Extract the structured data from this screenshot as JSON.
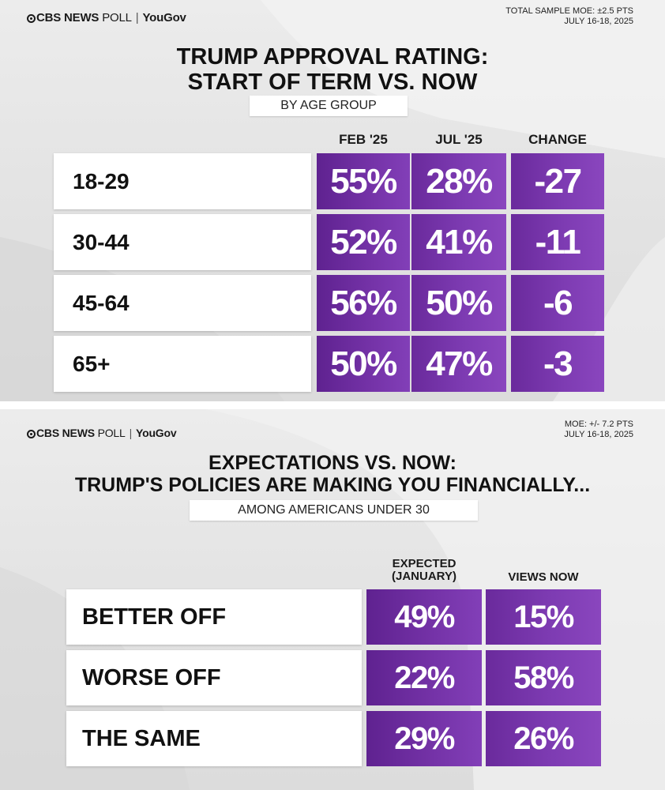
{
  "colors": {
    "accent_purple": "#7a36ae",
    "cell_text": "#ffffff",
    "background": "#e6e6e6"
  },
  "panel1": {
    "brand": {
      "network": "CBS NEWS",
      "poll": "POLL",
      "partner": "YouGov"
    },
    "moe": {
      "line1": "TOTAL SAMPLE MOE: ±2.5 PTS",
      "line2": "JULY 16-18, 2025"
    },
    "title": {
      "line1": "TRUMP APPROVAL RATING:",
      "line2": "START OF TERM VS. NOW"
    },
    "subtitle": "BY AGE GROUP"
  },
  "panel2": {
    "brand": {
      "network": "CBS NEWS",
      "poll": "POLL",
      "partner": "YouGov"
    },
    "moe": {
      "line1": "MOE: +/- 7.2 PTS",
      "line2": "JULY 16-18, 2025"
    },
    "title": {
      "line1": "EXPECTATIONS VS. NOW:",
      "line2": "TRUMP'S POLICIES ARE MAKING YOU FINANCIALLY..."
    },
    "subtitle": "AMONG AMERICANS UNDER 30"
  },
  "chart_data": [
    {
      "type": "table",
      "title": "TRUMP APPROVAL RATING: START OF TERM VS. NOW",
      "subtitle": "BY AGE GROUP",
      "columns": [
        "FEB '25",
        "JUL '25",
        "CHANGE"
      ],
      "rows": [
        {
          "label": "18-29",
          "cells": [
            "55%",
            "28%",
            "-27"
          ]
        },
        {
          "label": "30-44",
          "cells": [
            "52%",
            "41%",
            "-11"
          ]
        },
        {
          "label": "45-64",
          "cells": [
            "56%",
            "50%",
            "-6"
          ]
        },
        {
          "label": "65+",
          "cells": [
            "50%",
            "47%",
            "-3"
          ]
        }
      ]
    },
    {
      "type": "table",
      "title": "EXPECTATIONS VS. NOW: TRUMP'S POLICIES ARE MAKING YOU FINANCIALLY...",
      "subtitle": "AMONG AMERICANS UNDER 30",
      "columns": [
        "EXPECTED (JANUARY)",
        "VIEWS NOW"
      ],
      "column_lines": [
        [
          "EXPECTED",
          "(JANUARY)"
        ],
        [
          "VIEWS NOW"
        ]
      ],
      "rows": [
        {
          "label": "BETTER OFF",
          "cells": [
            "49%",
            "15%"
          ]
        },
        {
          "label": "WORSE OFF",
          "cells": [
            "22%",
            "58%"
          ]
        },
        {
          "label": "THE SAME",
          "cells": [
            "29%",
            "26%"
          ]
        }
      ]
    }
  ]
}
